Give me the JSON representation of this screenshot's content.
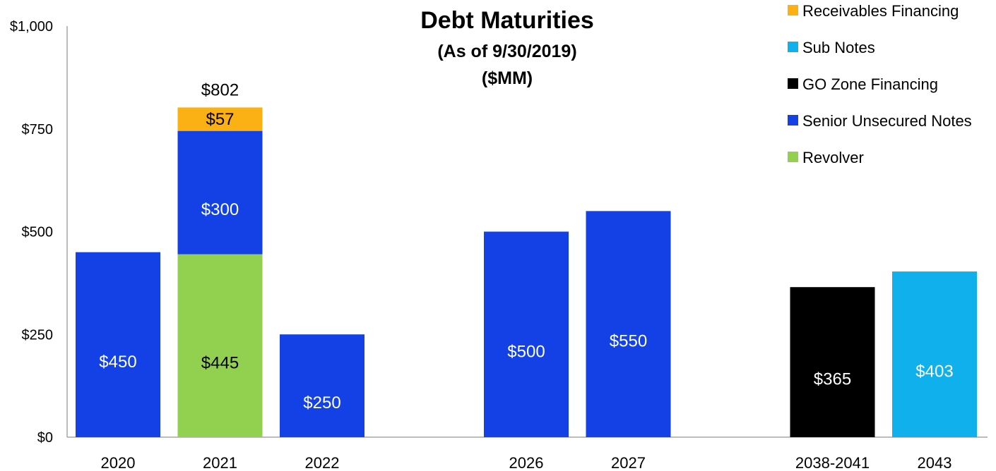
{
  "chart_data": {
    "type": "bar",
    "stacked": true,
    "title": "Debt Maturities",
    "subtitle": [
      "(As of 9/30/2019)",
      "($MM)"
    ],
    "categories": [
      "2020",
      "2021",
      "2022",
      "2026",
      "2027",
      "2038-2041",
      "2043"
    ],
    "ylim": [
      0,
      1000
    ],
    "yticks": [
      {
        "value": 0,
        "label": "$0"
      },
      {
        "value": 250,
        "label": "$250"
      },
      {
        "value": 500,
        "label": "$500"
      },
      {
        "value": 750,
        "label": "$750"
      },
      {
        "value": 1000,
        "label": "$1,000"
      }
    ],
    "gaps_after": [
      2,
      4
    ],
    "series": [
      {
        "name": "Revolver",
        "color": "#92D050",
        "label_color": "#000000",
        "values": [
          0,
          445,
          0,
          0,
          0,
          0,
          0
        ],
        "labels": [
          "",
          "$445",
          "",
          "",
          "",
          "",
          ""
        ]
      },
      {
        "name": "Senior Unsecured Notes",
        "color": "#1341E6",
        "label_color": "#ffffff",
        "values": [
          450,
          300,
          250,
          500,
          550,
          0,
          0
        ],
        "labels": [
          "$450",
          "$300",
          "$250",
          "$500",
          "$550",
          "",
          ""
        ]
      },
      {
        "name": "GO Zone Financing",
        "color": "#000000",
        "label_color": "#ffffff",
        "values": [
          0,
          0,
          0,
          0,
          0,
          365,
          0
        ],
        "labels": [
          "",
          "",
          "",
          "",
          "",
          "$365",
          ""
        ]
      },
      {
        "name": "Sub Notes",
        "color": "#10B0EC",
        "label_color": "#ffffff",
        "values": [
          0,
          0,
          0,
          0,
          0,
          0,
          403
        ],
        "labels": [
          "",
          "",
          "",
          "",
          "",
          "",
          "$403"
        ]
      },
      {
        "name": "Receivables Financing",
        "color": "#FBB014",
        "label_color": "#000000",
        "values": [
          0,
          57,
          0,
          0,
          0,
          0,
          0
        ],
        "labels": [
          "",
          "$57",
          "",
          "",
          "",
          "",
          ""
        ]
      }
    ],
    "totals": [
      "",
      "$802",
      "",
      "",
      "",
      "",
      ""
    ],
    "legend": {
      "position": "top-right",
      "order": [
        "Receivables Financing",
        "Sub Notes",
        "GO Zone Financing",
        "Senior Unsecured Notes",
        "Revolver"
      ]
    },
    "grid": false
  }
}
